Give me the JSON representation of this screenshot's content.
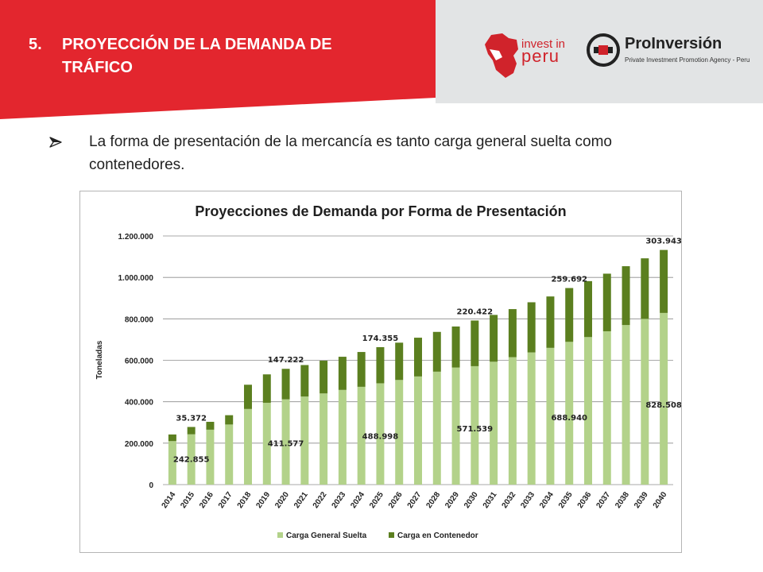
{
  "header": {
    "number": "5.",
    "title_line1": "PROYECCIÓN DE LA DEMANDA DE",
    "title_line2": "TRÁFICO"
  },
  "logos": {
    "invest_in": "invest in",
    "peru": "peru",
    "proinversion": "ProInversión",
    "proinversion_sub": "Private Investment Promotion Agency - Peru"
  },
  "bullet": {
    "icon": "arrow-bullet-icon",
    "text": "La forma de presentación de la mercancía es tanto carga general suelta como contenedores."
  },
  "colors": {
    "header_red": "#e3262e",
    "general": "#b3d28a",
    "container": "#5b7f1f"
  },
  "chart_data": {
    "type": "bar",
    "stacked": true,
    "title": "Proyecciones de Demanda por Forma de Presentación",
    "ylabel": "Toneladas",
    "xlabel": "",
    "ylim": [
      0,
      1200000
    ],
    "yticks": [
      0,
      200000,
      400000,
      600000,
      800000,
      1000000,
      1200000
    ],
    "ytick_labels": [
      "0",
      "200.000",
      "400.000",
      "600.000",
      "800.000",
      "1.000.000",
      "1.200.000"
    ],
    "grid": true,
    "legend_position": "bottom",
    "categories": [
      "2014",
      "2015",
      "2016",
      "2017",
      "2018",
      "2019",
      "2020",
      "2021",
      "2022",
      "2023",
      "2024",
      "2025",
      "2026",
      "2027",
      "2028",
      "2029",
      "2030",
      "2031",
      "2032",
      "2033",
      "2034",
      "2035",
      "2036",
      "2037",
      "2038",
      "2039",
      "2040"
    ],
    "series": [
      {
        "name": "Carga General Suelta",
        "color": "#b3d28a",
        "values": [
          210000,
          242855,
          265000,
          290000,
          365000,
          395000,
          411577,
          425000,
          440000,
          457000,
          472000,
          488998,
          505000,
          522000,
          545000,
          565000,
          571539,
          593000,
          615000,
          638000,
          660000,
          688940,
          712000,
          740000,
          770000,
          800000,
          828508
        ]
      },
      {
        "name": "Carga en Contenedor",
        "color": "#5b7f1f",
        "values": [
          32000,
          35372,
          38000,
          45000,
          117000,
          137000,
          147222,
          152000,
          158000,
          160000,
          168000,
          174355,
          180000,
          187000,
          192000,
          198000,
          220422,
          226000,
          232000,
          242000,
          248000,
          259692,
          270000,
          278000,
          284000,
          292000,
          303943
        ]
      }
    ],
    "annotations": [
      {
        "text": "35.372",
        "category": "2015",
        "series": "Carga en Contenedor"
      },
      {
        "text": "147.222",
        "category": "2020",
        "series": "Carga en Contenedor"
      },
      {
        "text": "174.355",
        "category": "2025",
        "series": "Carga en Contenedor"
      },
      {
        "text": "220.422",
        "category": "2030",
        "series": "Carga en Contenedor"
      },
      {
        "text": "259.692",
        "category": "2035",
        "series": "Carga en Contenedor"
      },
      {
        "text": "303.943",
        "category": "2040",
        "series": "Carga en Contenedor"
      },
      {
        "text": "242.855",
        "category": "2015",
        "series": "Carga General Suelta"
      },
      {
        "text": "411.577",
        "category": "2020",
        "series": "Carga General Suelta"
      },
      {
        "text": "488.998",
        "category": "2025",
        "series": "Carga General Suelta"
      },
      {
        "text": "571.539",
        "category": "2030",
        "series": "Carga General Suelta"
      },
      {
        "text": "688.940",
        "category": "2035",
        "series": "Carga General Suelta"
      },
      {
        "text": "828.508",
        "category": "2040",
        "series": "Carga General Suelta"
      }
    ]
  }
}
